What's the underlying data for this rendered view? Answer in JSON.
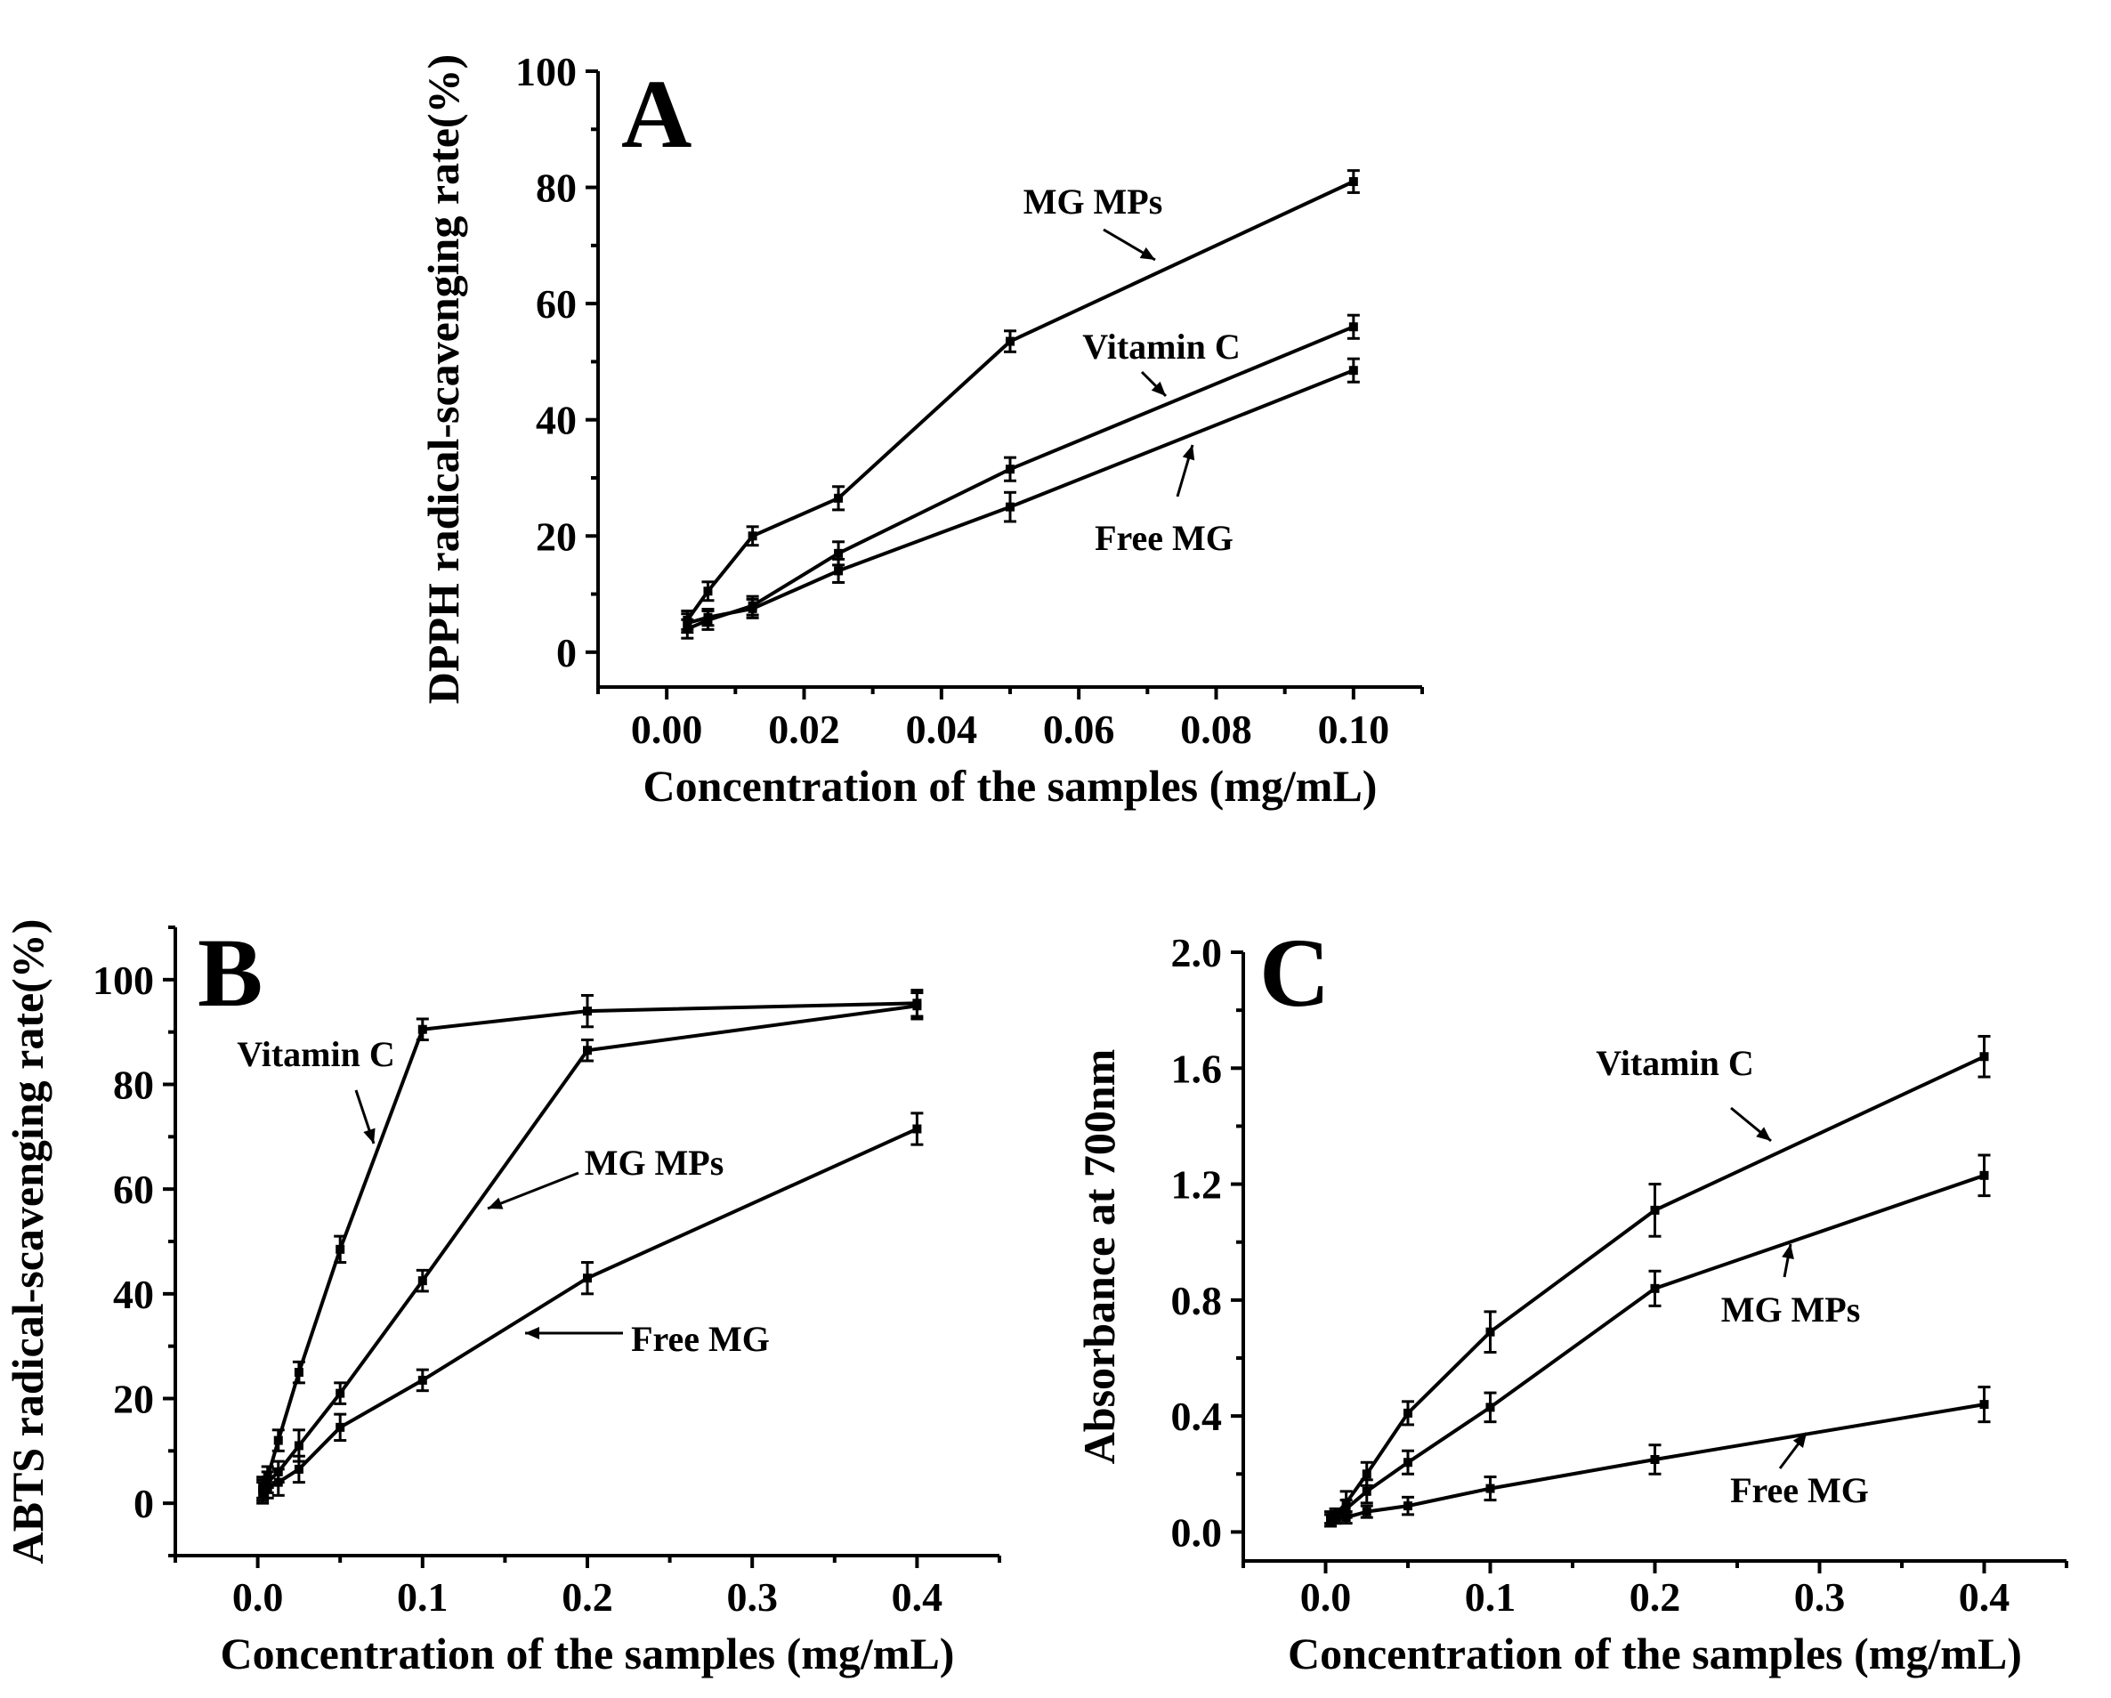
{
  "chart_data": [
    {
      "panel": "A",
      "type": "line",
      "xlabel": "Concentration of the samples (mg/mL)",
      "ylabel": "DPPH radical-scavenging rate(%)",
      "xlim": [
        -0.01,
        0.11
      ],
      "ylim": [
        -6,
        100
      ],
      "xticks": [
        "0.00",
        "0.02",
        "0.04",
        "0.06",
        "0.08",
        "0.10"
      ],
      "xtick_values": [
        0,
        0.02,
        0.04,
        0.06,
        0.08,
        0.1
      ],
      "yticks": [
        "0",
        "20",
        "40",
        "60",
        "80",
        "100"
      ],
      "ytick_values": [
        0,
        20,
        40,
        60,
        80,
        100
      ],
      "x": [
        0.003,
        0.006,
        0.0125,
        0.025,
        0.05,
        0.1
      ],
      "series": [
        {
          "name": "MG MPs",
          "values": [
            5.5,
            10.5,
            20.0,
            26.5,
            53.5,
            81.0
          ],
          "errors": [
            1.6,
            1.6,
            1.6,
            2.0,
            1.8,
            1.9
          ]
        },
        {
          "name": "Vitamin C",
          "values": [
            4.0,
            5.5,
            8.0,
            17.0,
            31.5,
            56.0
          ],
          "errors": [
            1.6,
            1.6,
            1.6,
            2.0,
            2.0,
            2.0
          ]
        },
        {
          "name": "Free MG",
          "values": [
            5.0,
            6.0,
            7.5,
            14.0,
            25.0,
            48.5
          ],
          "errors": [
            1.6,
            1.4,
            1.6,
            2.0,
            2.5,
            2.0
          ]
        }
      ],
      "annotations": [
        {
          "label": "MG MPs",
          "series": "MG MPs"
        },
        {
          "label": "Vitamin C",
          "series": "Vitamin C"
        },
        {
          "label": "Free MG",
          "series": "Free MG"
        }
      ]
    },
    {
      "panel": "B",
      "type": "line",
      "xlabel": "Concentration of the samples (mg/mL)",
      "ylabel": "ABTS radical-scavenging rate(%)",
      "xlim": [
        -0.05,
        0.45
      ],
      "ylim": [
        -10,
        110
      ],
      "xticks": [
        "0.0",
        "0.1",
        "0.2",
        "0.3",
        "0.4"
      ],
      "xtick_values": [
        0,
        0.1,
        0.2,
        0.3,
        0.4
      ],
      "yticks": [
        "0",
        "20",
        "40",
        "60",
        "80",
        "100"
      ],
      "ytick_values": [
        0,
        20,
        40,
        60,
        80,
        100
      ],
      "x": [
        0.003,
        0.006,
        0.0125,
        0.025,
        0.05,
        0.1,
        0.2,
        0.4
      ],
      "series": [
        {
          "name": "Vitamin C",
          "values": [
            3.0,
            5.0,
            12.0,
            25.0,
            48.5,
            90.5,
            94.0,
            95.5
          ],
          "errors": [
            2.0,
            2.0,
            2.0,
            2.0,
            2.5,
            2.0,
            3.0,
            2.5
          ]
        },
        {
          "name": "MG MPs",
          "values": [
            2.5,
            4.0,
            6.0,
            11.0,
            21.0,
            42.5,
            86.5,
            95.0
          ],
          "errors": [
            2.0,
            2.0,
            2.0,
            3.0,
            2.0,
            2.0,
            2.0,
            2.5
          ]
        },
        {
          "name": "Free MG",
          "values": [
            2.0,
            3.0,
            4.0,
            6.5,
            14.5,
            23.5,
            43.0,
            71.5
          ],
          "errors": [
            2.0,
            2.0,
            2.5,
            2.5,
            2.5,
            2.0,
            3.0,
            3.0
          ]
        }
      ],
      "annotations": [
        {
          "label": "Vitamin C",
          "series": "Vitamin C"
        },
        {
          "label": "MG MPs",
          "series": "MG MPs"
        },
        {
          "label": "Free MG",
          "series": "Free MG"
        }
      ]
    },
    {
      "panel": "C",
      "type": "line",
      "xlabel": "Concentration of the samples (mg/mL)",
      "ylabel": "Absorbance at 700nm",
      "xlim": [
        -0.05,
        0.45
      ],
      "ylim": [
        -0.1,
        2.0
      ],
      "xticks": [
        "0.0",
        "0.1",
        "0.2",
        "0.3",
        "0.4"
      ],
      "xtick_values": [
        0,
        0.1,
        0.2,
        0.3,
        0.4
      ],
      "yticks": [
        "0.0",
        "0.4",
        "0.8",
        "1.2",
        "1.6",
        "2.0"
      ],
      "ytick_values": [
        0,
        0.4,
        0.8,
        1.2,
        1.6,
        2.0
      ],
      "x": [
        0.003,
        0.006,
        0.0125,
        0.025,
        0.05,
        0.1,
        0.2,
        0.4
      ],
      "series": [
        {
          "name": "Vitamin C",
          "values": [
            0.05,
            0.06,
            0.1,
            0.2,
            0.41,
            0.69,
            1.11,
            1.64
          ],
          "errors": [
            0.02,
            0.02,
            0.04,
            0.04,
            0.04,
            0.07,
            0.09,
            0.07
          ]
        },
        {
          "name": "MG MPs",
          "values": [
            0.04,
            0.05,
            0.08,
            0.14,
            0.24,
            0.43,
            0.84,
            1.23
          ],
          "errors": [
            0.02,
            0.02,
            0.03,
            0.04,
            0.04,
            0.05,
            0.06,
            0.07
          ]
        },
        {
          "name": "Free MG",
          "values": [
            0.04,
            0.05,
            0.05,
            0.07,
            0.09,
            0.15,
            0.25,
            0.44
          ],
          "errors": [
            0.02,
            0.02,
            0.02,
            0.02,
            0.03,
            0.04,
            0.05,
            0.06
          ]
        }
      ],
      "annotations": [
        {
          "label": "Vitamin C",
          "series": "Vitamin C"
        },
        {
          "label": "MG MPs",
          "series": "MG MPs"
        },
        {
          "label": "Free MG",
          "series": "Free MG"
        }
      ]
    }
  ]
}
